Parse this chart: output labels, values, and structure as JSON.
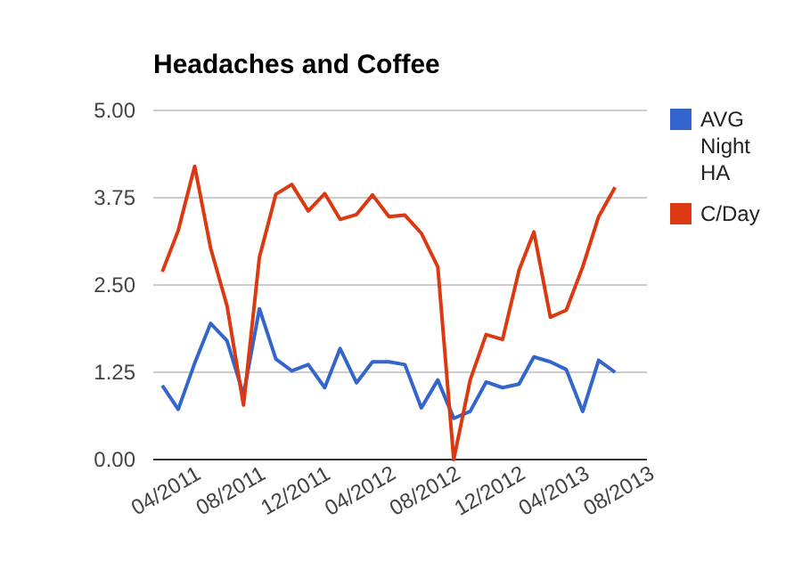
{
  "chart_data": {
    "type": "line",
    "title": "Headaches and Coffee",
    "x": [
      "2011-04",
      "2011-05",
      "2011-06",
      "2011-07",
      "2011-08",
      "2011-09",
      "2011-10",
      "2011-11",
      "2011-12",
      "2012-01",
      "2012-02",
      "2012-03",
      "2012-04",
      "2012-05",
      "2012-06",
      "2012-07",
      "2012-08",
      "2012-09",
      "2012-10",
      "2012-11",
      "2012-12",
      "2013-01",
      "2013-02",
      "2013-03",
      "2013-04",
      "2013-05",
      "2013-06",
      "2013-07",
      "2013-08"
    ],
    "series": [
      {
        "name": "AVG Night HA",
        "color": "#3366cc",
        "values": [
          1.06,
          0.72,
          1.38,
          1.95,
          1.7,
          0.93,
          2.16,
          1.44,
          1.27,
          1.36,
          1.03,
          1.59,
          1.1,
          1.4,
          1.4,
          1.36,
          0.74,
          1.14,
          0.59,
          0.69,
          1.11,
          1.03,
          1.08,
          1.47,
          1.4,
          1.29,
          0.69,
          1.42,
          1.25
        ]
      },
      {
        "name": "C/Day",
        "color": "#dc3912",
        "values": [
          2.69,
          3.28,
          4.2,
          3.03,
          2.2,
          0.78,
          2.9,
          3.8,
          3.94,
          3.56,
          3.81,
          3.44,
          3.51,
          3.79,
          3.48,
          3.5,
          3.24,
          2.76,
          0.0,
          1.14,
          1.79,
          1.72,
          2.71,
          3.26,
          2.04,
          2.14,
          2.76,
          3.48,
          3.9
        ]
      }
    ],
    "xlim": [
      "2011-03-15",
      "2013-09-30"
    ],
    "xticks": [
      {
        "value": "2011-04",
        "label": "04/2011"
      },
      {
        "value": "2011-08",
        "label": "08/2011"
      },
      {
        "value": "2011-12",
        "label": "12/2011"
      },
      {
        "value": "2012-04",
        "label": "04/2012"
      },
      {
        "value": "2012-08",
        "label": "08/2012"
      },
      {
        "value": "2012-12",
        "label": "12/2012"
      },
      {
        "value": "2013-04",
        "label": "04/2013"
      },
      {
        "value": "2013-08",
        "label": "08/2013"
      }
    ],
    "ylim": [
      0,
      5
    ],
    "yticks": [
      {
        "value": 0,
        "label": "0.00"
      },
      {
        "value": 1.25,
        "label": "1.25"
      },
      {
        "value": 2.5,
        "label": "2.50"
      },
      {
        "value": 3.75,
        "label": "3.75"
      },
      {
        "value": 5,
        "label": "5.00"
      }
    ],
    "grid": "y",
    "legend": "right",
    "marker": "none",
    "line_style": "solid"
  }
}
